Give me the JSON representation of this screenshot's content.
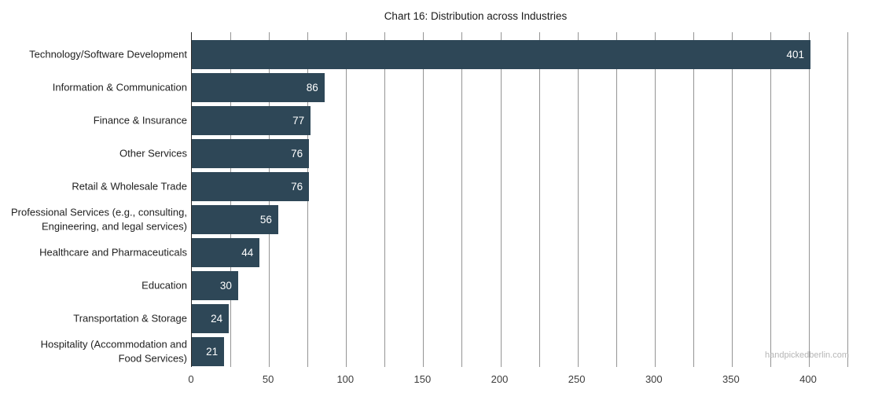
{
  "watermark": "handpickedberlin.com",
  "chart_data": {
    "type": "bar",
    "orientation": "horizontal",
    "title": "Chart 16: Distribution across Industries",
    "categories": [
      "Technology/Software Development",
      "Information & Communication",
      "Finance & Insurance",
      "Other Services",
      "Retail & Wholesale Trade",
      "Professional Services (e.g., consulting,\nEngineering, and legal services)",
      "Healthcare and Pharmaceuticals",
      "Education",
      "Transportation & Storage",
      "Hospitality (Accommodation and\nFood Services)"
    ],
    "values": [
      401,
      86,
      77,
      76,
      76,
      56,
      44,
      30,
      24,
      21
    ],
    "xlabel": "",
    "ylabel": "",
    "xlim": [
      0,
      425
    ],
    "x_ticks": [
      0,
      50,
      100,
      150,
      200,
      250,
      300,
      350,
      400
    ],
    "gridline_interval": 25,
    "grid": true,
    "legend": "none",
    "value_labels_inside_bars": true,
    "colors": {
      "bar": "#2e4757",
      "value_label": "#ffffff",
      "gridline": "#949494",
      "axis_line": "#2b2b2b",
      "category_label": "#212121",
      "tick_label": "#3c3c3c",
      "title": "#1a1a1a",
      "watermark": "#b6b6b6"
    }
  }
}
